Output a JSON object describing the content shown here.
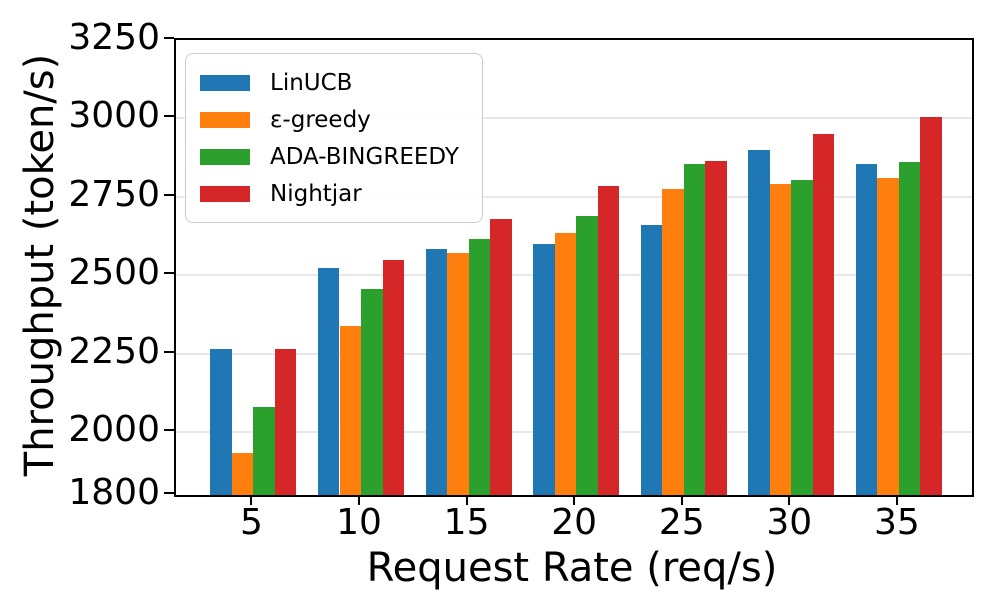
{
  "chart_data": {
    "type": "bar",
    "title": "",
    "xlabel": "Request Rate (req/s)",
    "ylabel": "Throughput (token/s)",
    "categories": [
      5,
      10,
      15,
      20,
      25,
      30,
      35
    ],
    "series": [
      {
        "name": "LinUCB",
        "color": "#1f77b4",
        "values": [
          2265,
          2525,
          2585,
          2600,
          2660,
          2900,
          2855
        ]
      },
      {
        "name": "ε-greedy",
        "color": "#ff7f0e",
        "values": [
          1935,
          2340,
          2570,
          2635,
          2775,
          2790,
          2810
        ]
      },
      {
        "name": "ADA-BINGREEDY",
        "color": "#2ca02c",
        "values": [
          2080,
          2455,
          2615,
          2690,
          2855,
          2805,
          2860
        ]
      },
      {
        "name": "Nightjar",
        "color": "#d62728",
        "values": [
          2265,
          2550,
          2680,
          2785,
          2865,
          2950,
          3005
        ]
      }
    ],
    "ylim": [
      1800,
      3250
    ],
    "yticks": [
      1800,
      2000,
      2250,
      2500,
      2750,
      3000,
      3250
    ],
    "grid": true,
    "legend_position": "top-left",
    "axis_color": "#000000",
    "grid_color": "#e8e8e8"
  }
}
